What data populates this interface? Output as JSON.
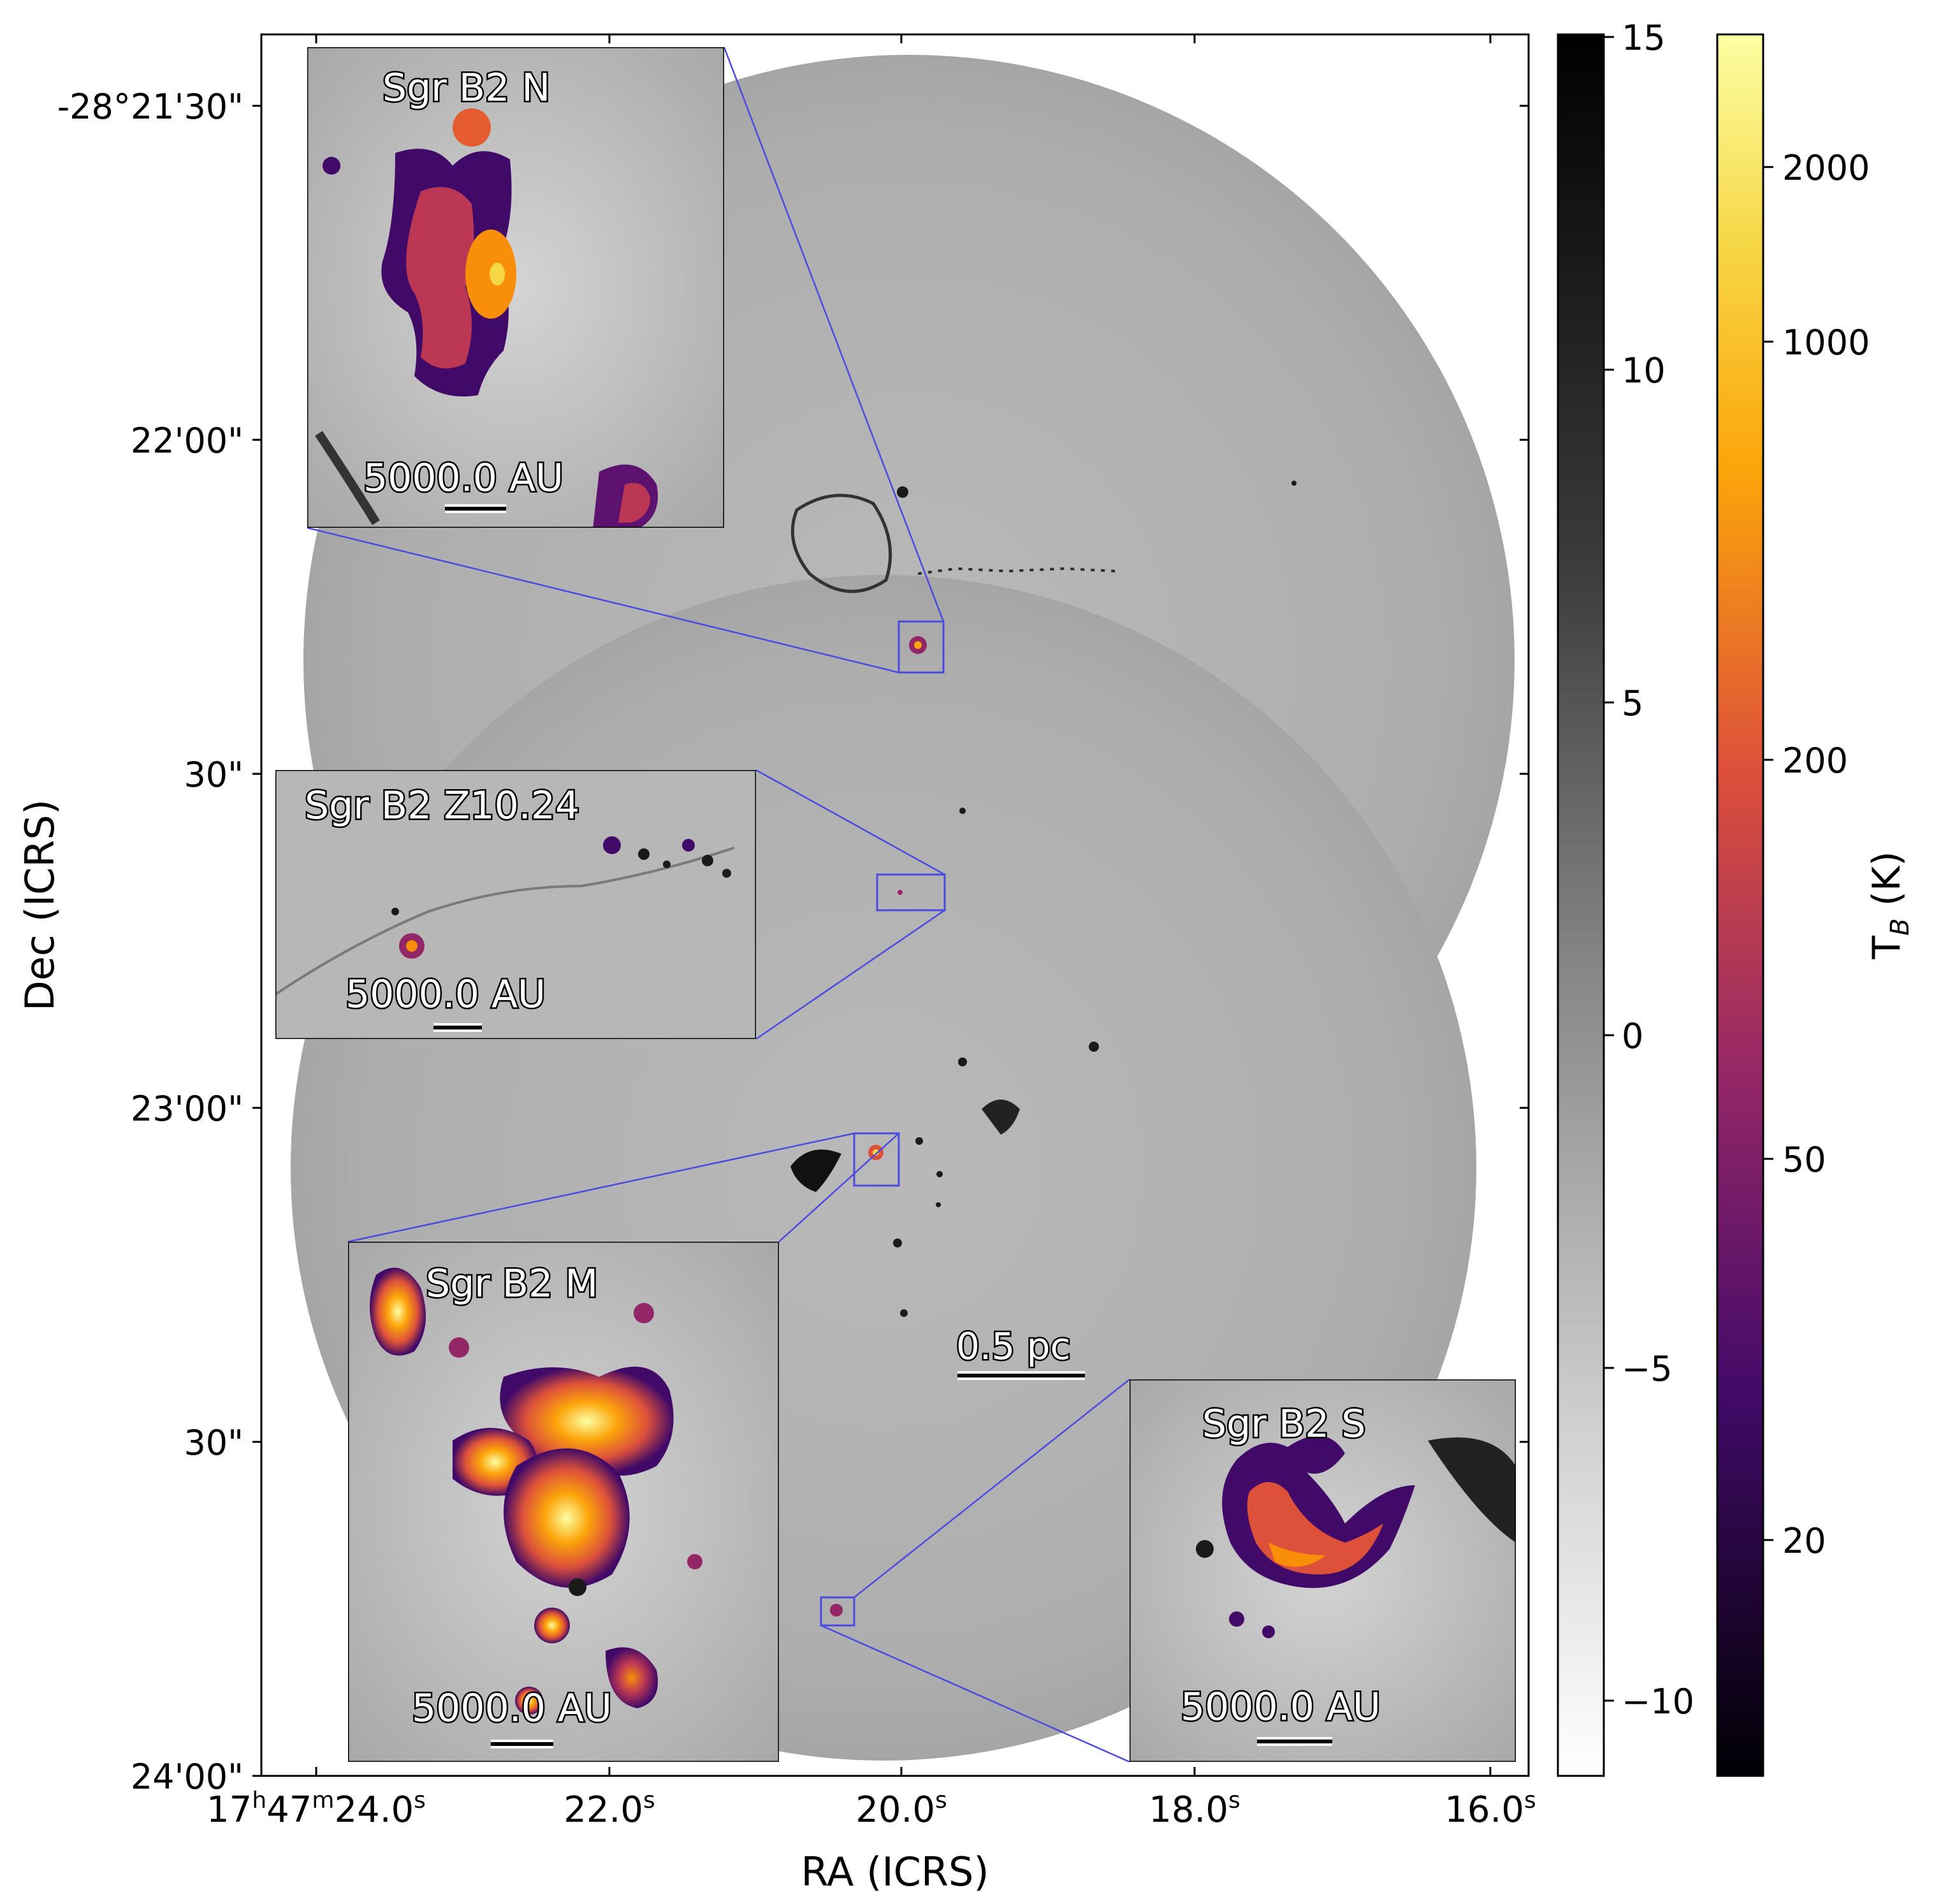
{
  "figure": {
    "x_axis_label": "RA (ICRS)",
    "y_axis_label": "Dec (ICRS)",
    "x_ticks": [
      {
        "h": "17",
        "m": "47",
        "s": "24.0"
      },
      {
        "h": "",
        "m": "",
        "s": "22.0"
      },
      {
        "h": "",
        "m": "",
        "s": "20.0"
      },
      {
        "h": "",
        "m": "",
        "s": "18.0"
      },
      {
        "h": "",
        "m": "",
        "s": "16.0"
      }
    ],
    "y_ticks": [
      "-28°21'30\"",
      "22'00\"",
      "30\"",
      "23'00\"",
      "30\"",
      "24'00\""
    ],
    "scalebar_main": "0.5 pc"
  },
  "insets": [
    {
      "label": "Sgr B2 N",
      "scalebar": "5000.0 AU"
    },
    {
      "label": "Sgr B2 Z10.24",
      "scalebar": "5000.0 AU"
    },
    {
      "label": "Sgr B2 M",
      "scalebar": "5000.0 AU"
    },
    {
      "label": "Sgr B2 S",
      "scalebar": "5000.0 AU"
    }
  ],
  "colorbar_gray": {
    "ticks": [
      "15",
      "10",
      "5",
      "0",
      "−5",
      "−10"
    ],
    "colormap": "gray_r"
  },
  "colorbar_inferno": {
    "label": "T",
    "label_sub": "B",
    "label_unit": " (K)",
    "ticks": [
      "2000",
      "1000",
      "200",
      "50",
      "20"
    ],
    "colormap": "inferno"
  },
  "colors": {
    "connector": "#4b4be0",
    "frame": "#000000",
    "background": "#ffffff"
  }
}
